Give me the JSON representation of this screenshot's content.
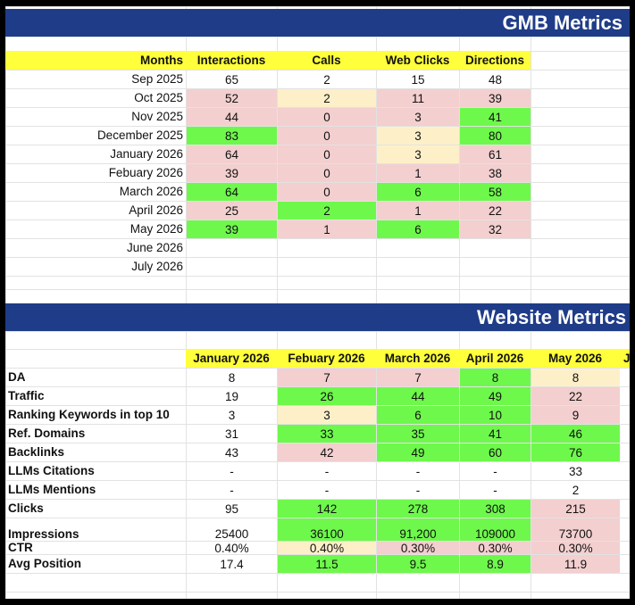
{
  "colors": {
    "header_banner": "#1f3c88",
    "header_yellow": "#ffff3c",
    "good": "#6ef84c",
    "bad": "#f3cfcf",
    "neutral": "#fdf0c9"
  },
  "gmb": {
    "title": "GMB Metrics",
    "headers": [
      "Months",
      "Interactions",
      "Calls",
      "Web Clicks",
      "Directions"
    ],
    "rows": [
      {
        "month": "Sep 2025",
        "values": [
          "65",
          "2",
          "15",
          "48"
        ],
        "colors": [
          "",
          "",
          "",
          ""
        ]
      },
      {
        "month": "Oct 2025",
        "values": [
          "52",
          "2",
          "11",
          "39"
        ],
        "colors": [
          "pink",
          "cream",
          "pink",
          "pink"
        ]
      },
      {
        "month": "Nov 2025",
        "values": [
          "44",
          "0",
          "3",
          "41"
        ],
        "colors": [
          "pink",
          "pink",
          "pink",
          "green"
        ]
      },
      {
        "month": "December 2025",
        "values": [
          "83",
          "0",
          "3",
          "80"
        ],
        "colors": [
          "green",
          "pink",
          "cream",
          "green"
        ]
      },
      {
        "month": "January 2026",
        "values": [
          "64",
          "0",
          "3",
          "61"
        ],
        "colors": [
          "pink",
          "pink",
          "cream",
          "pink"
        ]
      },
      {
        "month": "Febuary 2026",
        "values": [
          "39",
          "0",
          "1",
          "38"
        ],
        "colors": [
          "pink",
          "pink",
          "pink",
          "pink"
        ]
      },
      {
        "month": "March 2026",
        "values": [
          "64",
          "0",
          "6",
          "58"
        ],
        "colors": [
          "green",
          "pink",
          "green",
          "green"
        ]
      },
      {
        "month": "April 2026",
        "values": [
          "25",
          "2",
          "1",
          "22"
        ],
        "colors": [
          "pink",
          "green",
          "pink",
          "pink"
        ]
      },
      {
        "month": "May 2026",
        "values": [
          "39",
          "1",
          "6",
          "32"
        ],
        "colors": [
          "green",
          "pink",
          "green",
          "pink"
        ]
      },
      {
        "month": "June 2026",
        "values": [
          "",
          "",
          "",
          ""
        ],
        "colors": [
          "",
          "",
          "",
          ""
        ]
      },
      {
        "month": "July 2026",
        "values": [
          "",
          "",
          "",
          ""
        ],
        "colors": [
          "",
          "",
          "",
          ""
        ]
      }
    ]
  },
  "website": {
    "title": "Website Metrics",
    "headers": [
      "January 2026",
      "Febuary 2026",
      "March 2026",
      "April 2026",
      "May 2026",
      "J"
    ],
    "rows": [
      {
        "label": "DA",
        "values": [
          "8",
          "7",
          "7",
          "8",
          "8"
        ],
        "colors": [
          "",
          "pink",
          "pink",
          "green",
          "cream"
        ]
      },
      {
        "label": "Traffic",
        "values": [
          "19",
          "26",
          "44",
          "49",
          "22"
        ],
        "colors": [
          "",
          "green",
          "green",
          "green",
          "pink"
        ]
      },
      {
        "label": "Ranking Keywords in top 10",
        "values": [
          "3",
          "3",
          "6",
          "10",
          "9"
        ],
        "colors": [
          "",
          "cream",
          "green",
          "green",
          "pink"
        ]
      },
      {
        "label": "Ref. Domains",
        "values": [
          "31",
          "33",
          "35",
          "41",
          "46"
        ],
        "colors": [
          "",
          "green",
          "green",
          "green",
          "green"
        ]
      },
      {
        "label": "Backlinks",
        "values": [
          "43",
          "42",
          "49",
          "60",
          "76"
        ],
        "colors": [
          "",
          "pink",
          "green",
          "green",
          "green"
        ]
      },
      {
        "label": "LLMs Citations",
        "values": [
          "-",
          "-",
          "-",
          "-",
          "33"
        ],
        "colors": [
          "",
          "",
          "",
          "",
          ""
        ]
      },
      {
        "label": "LLMs Mentions",
        "values": [
          "-",
          "-",
          "-",
          "-",
          "2"
        ],
        "colors": [
          "",
          "",
          "",
          "",
          ""
        ]
      },
      {
        "label": "Clicks",
        "values": [
          "95",
          "142",
          "278",
          "308",
          "215"
        ],
        "colors": [
          "",
          "green",
          "green",
          "green",
          "pink"
        ]
      },
      {
        "label": "Impressions",
        "values": [
          "25400",
          "36100",
          "91,200",
          "109000",
          "73700"
        ],
        "colors": [
          "",
          "green",
          "green",
          "green",
          "pink"
        ]
      },
      {
        "label": "CTR",
        "values": [
          "0.40%",
          "0.40%",
          "0.30%",
          "0.30%",
          "0.30%"
        ],
        "colors": [
          "",
          "cream",
          "pink",
          "pink",
          "pink"
        ]
      },
      {
        "label": "Avg Position",
        "values": [
          "17.4",
          "11.5",
          "9.5",
          "8.9",
          "11.9"
        ],
        "colors": [
          "",
          "green",
          "green",
          "green",
          "pink"
        ]
      }
    ]
  }
}
